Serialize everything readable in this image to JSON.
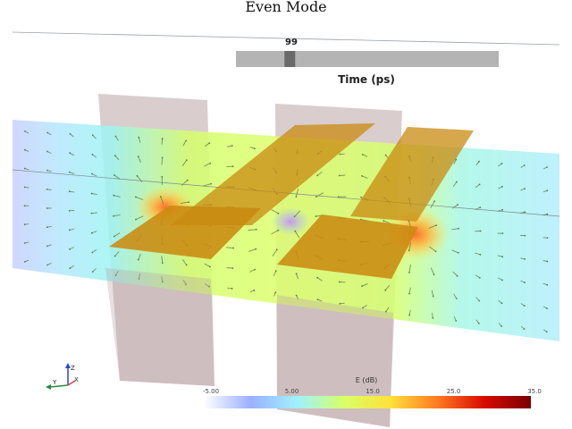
{
  "title": "Even Mode",
  "time_slider": {
    "value_label": "99",
    "caption": "Time (ps)",
    "position_fraction": 0.205,
    "track_color": "#b4b4b4",
    "thumb_color": "#6a6a6a"
  },
  "colorbar": {
    "title": "E (dB)",
    "ticks": [
      "-5.00",
      "5.00",
      "15.0",
      "25.0",
      "35.0"
    ],
    "colormap": [
      "#ffffff",
      "#9bb0ff",
      "#9ef2ff",
      "#d6ff66",
      "#ffe13a",
      "#ff7a22",
      "#d80b00",
      "#7a0000"
    ]
  },
  "axes_triad": {
    "x_label": "X",
    "y_label": "Y",
    "z_label": "Z",
    "x_color": "#d94040",
    "y_color": "#2b8a3e",
    "z_color": "#2f45c8"
  },
  "scene_colors": {
    "conductor": "#c98a10",
    "dielectric_plane": "#b9a4a6",
    "arrow": "#5a7a4a"
  }
}
